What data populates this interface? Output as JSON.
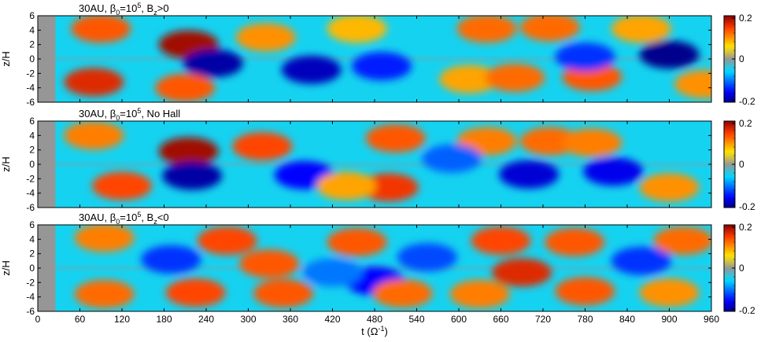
{
  "chart_data": [
    {
      "type": "heatmap",
      "title": "30AU, β0=10^5, Bz>0",
      "title_parts": {
        "prefix": "30AU, β",
        "beta_sub": "0",
        "eq": "=10",
        "exp": "5",
        "mid": ", B",
        "bz_sub": "z",
        "suffix": ">0"
      },
      "ylabel": "z/H",
      "ylim": [
        -6,
        6
      ],
      "y_ticks": [
        6,
        4,
        2,
        0,
        -2,
        -4,
        -6
      ],
      "xlim": [
        0,
        960
      ],
      "colorbar": {
        "ticks": [
          "0.2",
          "0",
          "-0.2"
        ],
        "range": [
          -0.2,
          0.2
        ]
      },
      "field_blobs": [
        {
          "t": 90,
          "z": 4.2,
          "value": 0.13
        },
        {
          "t": 215,
          "z": 2.0,
          "value": 0.19
        },
        {
          "t": 325,
          "z": 3.0,
          "value": 0.1
        },
        {
          "t": 250,
          "z": -0.6,
          "value": -0.19
        },
        {
          "t": 390,
          "z": -1.5,
          "value": -0.18
        },
        {
          "t": 490,
          "z": -1.0,
          "value": -0.14
        },
        {
          "t": 80,
          "z": -3.2,
          "value": 0.16
        },
        {
          "t": 210,
          "z": -4.0,
          "value": 0.13
        },
        {
          "t": 455,
          "z": 4.2,
          "value": 0.08
        },
        {
          "t": 640,
          "z": 4.2,
          "value": 0.12
        },
        {
          "t": 730,
          "z": 4.4,
          "value": 0.12
        },
        {
          "t": 860,
          "z": 4.2,
          "value": 0.09
        },
        {
          "t": 615,
          "z": -2.8,
          "value": 0.09
        },
        {
          "t": 680,
          "z": -2.6,
          "value": 0.12
        },
        {
          "t": 790,
          "z": -2.5,
          "value": 0.13
        },
        {
          "t": 900,
          "z": 0.6,
          "value": -0.2
        },
        {
          "t": 780,
          "z": 0.3,
          "value": -0.13
        },
        {
          "t": 950,
          "z": -3.5,
          "value": 0.1
        }
      ]
    },
    {
      "type": "heatmap",
      "title": "30AU, β0=10^5, No Hall",
      "title_parts": {
        "prefix": "30AU, β",
        "beta_sub": "0",
        "eq": "=10",
        "exp": "5",
        "suffix": ", No Hall"
      },
      "ylabel": "z/H",
      "ylim": [
        -6,
        6
      ],
      "y_ticks": [
        6,
        4,
        2,
        0,
        -2,
        -4,
        -6
      ],
      "xlim": [
        0,
        960
      ],
      "colorbar": {
        "ticks": [
          "0.2",
          "0",
          "-0.2"
        ],
        "range": [
          -0.2,
          0.2
        ]
      },
      "field_blobs": [
        {
          "t": 80,
          "z": 4.0,
          "value": 0.11
        },
        {
          "t": 215,
          "z": 1.8,
          "value": 0.19
        },
        {
          "t": 320,
          "z": 2.5,
          "value": 0.14
        },
        {
          "t": 220,
          "z": -1.6,
          "value": -0.19
        },
        {
          "t": 380,
          "z": -1.5,
          "value": -0.15
        },
        {
          "t": 120,
          "z": -3.0,
          "value": 0.14
        },
        {
          "t": 510,
          "z": 3.6,
          "value": 0.13
        },
        {
          "t": 500,
          "z": -3.2,
          "value": 0.15
        },
        {
          "t": 640,
          "z": 3.2,
          "value": 0.11
        },
        {
          "t": 730,
          "z": 3.2,
          "value": 0.12
        },
        {
          "t": 790,
          "z": 3.0,
          "value": 0.11
        },
        {
          "t": 700,
          "z": -1.4,
          "value": -0.17
        },
        {
          "t": 820,
          "z": -1.0,
          "value": -0.16
        },
        {
          "t": 900,
          "z": -3.2,
          "value": 0.1
        },
        {
          "t": 590,
          "z": 0.8,
          "value": -0.11
        },
        {
          "t": 440,
          "z": -3.0,
          "value": 0.09
        }
      ]
    },
    {
      "type": "heatmap",
      "title": "30AU, β0=10^5, Bz<0",
      "title_parts": {
        "prefix": "30AU, β",
        "beta_sub": "0",
        "eq": "=10",
        "exp": "5",
        "mid": ", B",
        "bz_sub": "z",
        "suffix": "<0"
      },
      "ylabel": "z/H",
      "ylim": [
        -6,
        6
      ],
      "y_ticks": [
        6,
        4,
        2,
        0,
        -2,
        -4,
        -6
      ],
      "xlim": [
        0,
        960
      ],
      "x_ticks": [
        0,
        60,
        120,
        180,
        240,
        300,
        360,
        420,
        480,
        540,
        600,
        660,
        720,
        780,
        840,
        900,
        960
      ],
      "xlabel": "t (Ω⁻¹)",
      "xlabel_parts": {
        "prefix": "t (Ω",
        "exp": "-1",
        "suffix": ")"
      },
      "colorbar": {
        "ticks": [
          "0.2",
          "0",
          "-0.2"
        ],
        "range": [
          -0.2,
          0.2
        ]
      },
      "field_blobs": [
        {
          "t": 95,
          "z": 4.2,
          "value": 0.11
        },
        {
          "t": 95,
          "z": -3.6,
          "value": 0.12
        },
        {
          "t": 190,
          "z": 1.2,
          "value": -0.13
        },
        {
          "t": 225,
          "z": -3.4,
          "value": 0.14
        },
        {
          "t": 270,
          "z": 3.8,
          "value": 0.14
        },
        {
          "t": 330,
          "z": 0.6,
          "value": 0.13
        },
        {
          "t": 350,
          "z": -3.5,
          "value": 0.13
        },
        {
          "t": 455,
          "z": 3.6,
          "value": 0.13
        },
        {
          "t": 480,
          "z": -1.8,
          "value": -0.15
        },
        {
          "t": 520,
          "z": -3.5,
          "value": 0.12
        },
        {
          "t": 555,
          "z": 1.5,
          "value": -0.12
        },
        {
          "t": 660,
          "z": 3.8,
          "value": 0.14
        },
        {
          "t": 690,
          "z": -0.6,
          "value": 0.16
        },
        {
          "t": 765,
          "z": 3.6,
          "value": 0.13
        },
        {
          "t": 780,
          "z": -3.2,
          "value": 0.13
        },
        {
          "t": 860,
          "z": 1.0,
          "value": -0.13
        },
        {
          "t": 920,
          "z": 3.8,
          "value": 0.12
        },
        {
          "t": 900,
          "z": -3.4,
          "value": 0.1
        },
        {
          "t": 630,
          "z": -3.6,
          "value": 0.11
        },
        {
          "t": 420,
          "z": -0.6,
          "value": -0.1
        }
      ]
    }
  ]
}
